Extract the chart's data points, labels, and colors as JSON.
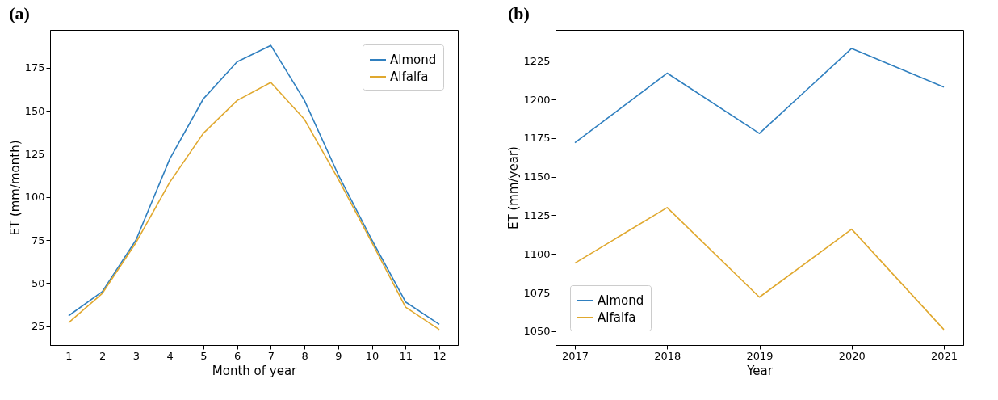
{
  "chart_data": [
    {
      "type": "line",
      "title": "(a)",
      "xlabel": "Month of year",
      "ylabel": "ET (mm/month)",
      "x": [
        1,
        2,
        3,
        4,
        5,
        6,
        7,
        8,
        9,
        10,
        11,
        12
      ],
      "series": [
        {
          "name": "Almond",
          "color": "#2f7fbf",
          "values": [
            31,
            45,
            75,
            122,
            157,
            178.5,
            188,
            156,
            113,
            75,
            39,
            26
          ]
        },
        {
          "name": "Alfalfa",
          "color": "#e0a82e",
          "values": [
            27,
            44,
            73.5,
            108.5,
            137,
            156,
            166.5,
            145,
            110.5,
            73.5,
            36,
            23
          ]
        }
      ],
      "xlim": [
        0.45,
        12.55
      ],
      "xticks": [
        1,
        2,
        3,
        4,
        5,
        6,
        7,
        8,
        9,
        10,
        11,
        12
      ],
      "ylim": [
        14,
        197
      ],
      "yticks": [
        25,
        50,
        75,
        100,
        125,
        150,
        175
      ],
      "legend": "top right"
    },
    {
      "type": "line",
      "title": "(b)",
      "xlabel": "Year",
      "ylabel": "ET (mm/year)",
      "x": [
        2017,
        2018,
        2019,
        2020,
        2021
      ],
      "series": [
        {
          "name": "Almond",
          "color": "#2f7fbf",
          "values": [
            1172,
            1217,
            1178,
            1233,
            1208
          ]
        },
        {
          "name": "Alfalfa",
          "color": "#e0a82e",
          "values": [
            1094,
            1130,
            1072,
            1116,
            1051
          ]
        }
      ],
      "xlim": [
        2016.79,
        2021.21
      ],
      "xticks": [
        2017,
        2018,
        2019,
        2020,
        2021
      ],
      "ylim": [
        1041,
        1245
      ],
      "yticks": [
        1050,
        1075,
        1100,
        1125,
        1150,
        1175,
        1200,
        1225
      ],
      "legend": "bottom left"
    }
  ]
}
